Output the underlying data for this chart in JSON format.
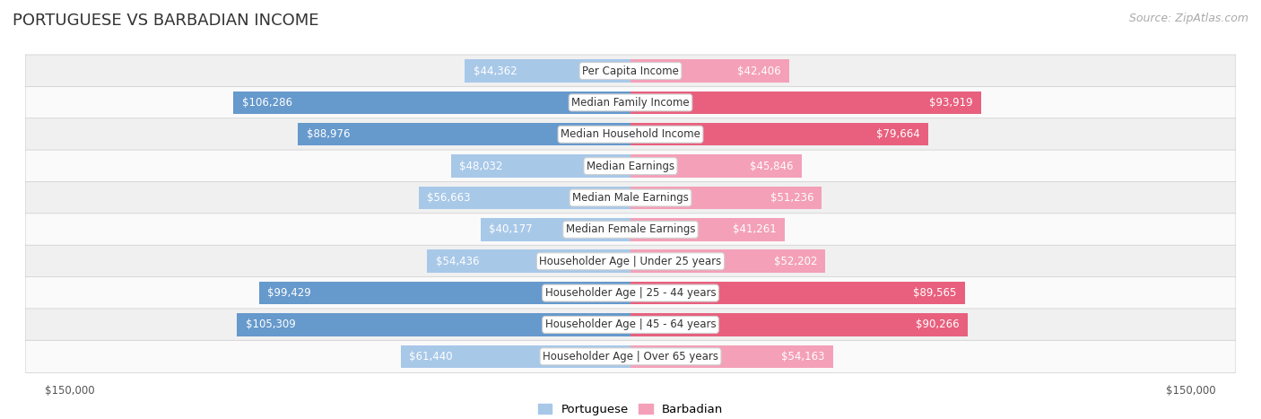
{
  "title": "PORTUGUESE VS BARBADIAN INCOME",
  "source": "Source: ZipAtlas.com",
  "categories": [
    "Per Capita Income",
    "Median Family Income",
    "Median Household Income",
    "Median Earnings",
    "Median Male Earnings",
    "Median Female Earnings",
    "Householder Age | Under 25 years",
    "Householder Age | 25 - 44 years",
    "Householder Age | 45 - 64 years",
    "Householder Age | Over 65 years"
  ],
  "portuguese": [
    44362,
    106286,
    88976,
    48032,
    56663,
    40177,
    54436,
    99429,
    105309,
    61440
  ],
  "barbadian": [
    42406,
    93919,
    79664,
    45846,
    51236,
    41261,
    52202,
    89565,
    90266,
    54163
  ],
  "max_val": 150000,
  "portuguese_color_light": "#a8c8e8",
  "portuguese_color_dark": "#6699cc",
  "barbadian_color_light": "#f4a0b8",
  "barbadian_color_dark": "#e8607e",
  "bar_height": 0.72,
  "row_bg_color_odd": "#f0f0f0",
  "row_bg_color_even": "#fafafa",
  "label_bg_color": "#ffffff",
  "label_border_color": "#d0d0d0",
  "title_fontsize": 13,
  "source_fontsize": 9,
  "label_fontsize": 8.5,
  "value_fontsize": 8.5,
  "legend_fontsize": 9.5,
  "inside_threshold": 27000,
  "dark_threshold": 70000
}
